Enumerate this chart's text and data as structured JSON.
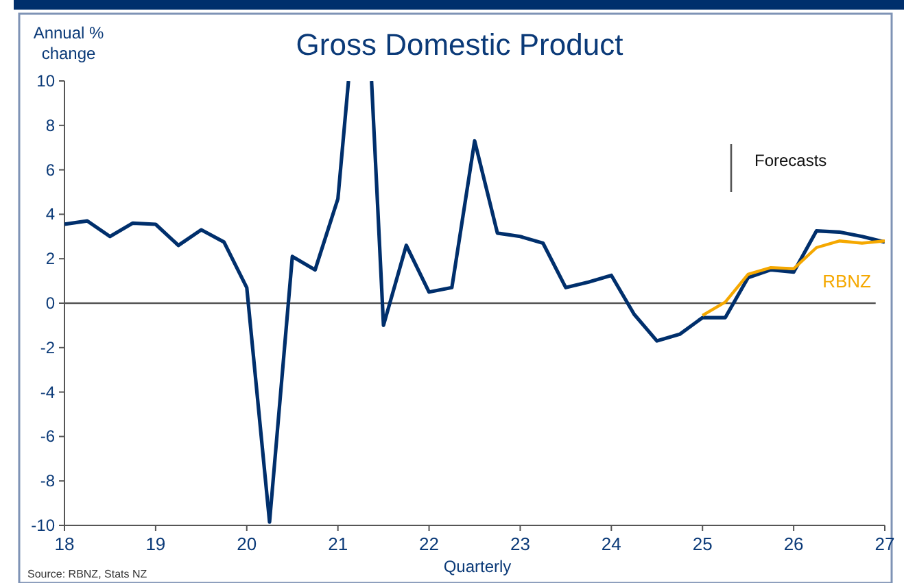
{
  "chart_data": {
    "type": "line",
    "title": "Gross Domestic Product",
    "ylabel": "Annual % change",
    "xlabel": "Quarterly",
    "xlim": [
      18,
      27
    ],
    "xticks": [
      18,
      19,
      20,
      21,
      22,
      23,
      24,
      25,
      26,
      27
    ],
    "ylim": [
      -10,
      10
    ],
    "yticks": [
      -10,
      -8,
      -6,
      -4,
      -2,
      0,
      2,
      4,
      6,
      8,
      10
    ],
    "grid": false,
    "ref_lines": [
      {
        "axis": "y",
        "value": 0,
        "color": "#555555"
      }
    ],
    "annotations": [
      "Forecasts",
      "Source: RBNZ, Stats NZ"
    ],
    "series": [
      {
        "color": "#002f6c",
        "x": [
          18,
          18.25,
          18.5,
          18.75,
          19,
          19.25,
          19.5,
          19.75,
          20,
          20.25,
          20.5,
          20.75,
          21,
          21.116,
          21.25,
          21.369,
          21.5,
          21.75,
          22,
          22.25,
          22.5,
          22.75,
          23,
          23.25,
          23.5,
          23.75,
          24,
          24.25,
          24.5,
          24.75,
          25,
          25.25,
          25.5,
          25.75,
          26,
          26.25,
          26.5,
          26.75,
          27
        ],
        "values": [
          3.55,
          3.7,
          3.0,
          3.6,
          3.55,
          2.6,
          3.3,
          2.75,
          0.7,
          -9.85,
          2.1,
          1.5,
          4.7,
          10,
          null,
          10,
          -1.0,
          2.6,
          0.5,
          0.7,
          7.3,
          3.15,
          3.0,
          2.7,
          0.7,
          0.95,
          1.25,
          -0.5,
          -1.7,
          -1.4,
          -0.65,
          -0.65,
          1.15,
          1.5,
          1.4,
          3.25,
          3.2,
          3.0,
          2.75
        ]
      },
      {
        "name": "RBNZ",
        "color": "#f5a800",
        "x": [
          25,
          25.25,
          25.5,
          25.75,
          26,
          26.25,
          26.5,
          26.75,
          27
        ],
        "values": [
          -0.55,
          0.05,
          1.3,
          1.6,
          1.55,
          2.5,
          2.8,
          2.7,
          2.8
        ]
      }
    ]
  }
}
